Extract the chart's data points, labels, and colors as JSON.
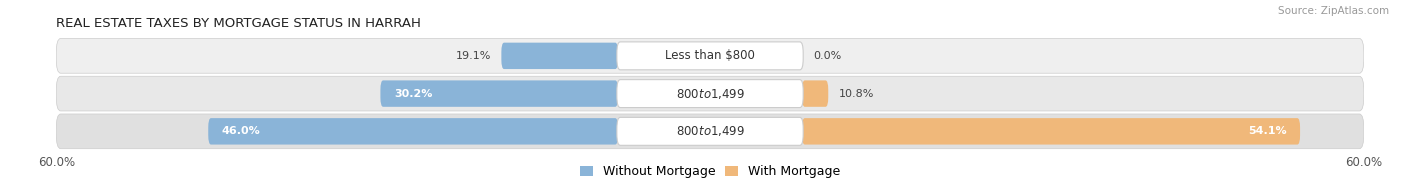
{
  "title": "REAL ESTATE TAXES BY MORTGAGE STATUS IN HARRAH",
  "source": "Source: ZipAtlas.com",
  "rows": [
    {
      "label": "Less than $800",
      "without_mortgage": 19.1,
      "with_mortgage": 0.0
    },
    {
      "label": "$800 to $1,499",
      "without_mortgage": 30.2,
      "with_mortgage": 10.8
    },
    {
      "label": "$800 to $1,499",
      "without_mortgage": 46.0,
      "with_mortgage": 54.1
    }
  ],
  "x_max": 60.0,
  "x_min": -60.0,
  "color_without": "#8ab4d8",
  "color_with": "#f0b87a",
  "color_without_dark": "#5a8fc0",
  "color_with_dark": "#e8962a",
  "row_bg_colors": [
    "#efefef",
    "#e8e8e8",
    "#e0e0e0"
  ],
  "title_fontsize": 9.5,
  "label_fontsize": 8.5,
  "tick_fontsize": 8.5,
  "legend_fontsize": 9,
  "value_fontsize": 8.0
}
